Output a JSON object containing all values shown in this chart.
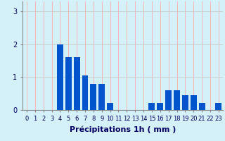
{
  "hours": [
    0,
    1,
    2,
    3,
    4,
    5,
    6,
    7,
    8,
    9,
    10,
    11,
    12,
    13,
    14,
    15,
    16,
    17,
    18,
    19,
    20,
    21,
    22,
    23
  ],
  "values": [
    0,
    0,
    0,
    0,
    2.0,
    1.6,
    1.6,
    1.05,
    0.8,
    0.8,
    0.22,
    0.0,
    0.0,
    0.0,
    0.0,
    0.22,
    0.22,
    0.6,
    0.6,
    0.45,
    0.45,
    0.22,
    0.0,
    0.22
  ],
  "bar_color": "#0055cc",
  "background_color": "#d4f0f8",
  "grid_color_h": "#c8c8c8",
  "grid_color_v": "#ffaaaa",
  "xlabel": "Précipitations 1h ( mm )",
  "ylim": [
    0,
    3.3
  ],
  "yticks": [
    0,
    1,
    2,
    3
  ],
  "label_fontsize": 7,
  "tick_fontsize": 6
}
